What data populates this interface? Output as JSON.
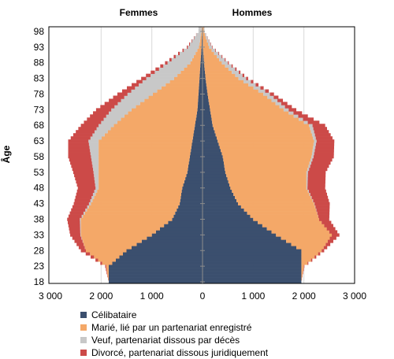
{
  "chart_data": {
    "type": "bar",
    "orientation": "horizontal",
    "stacked": true,
    "title_left": "Femmes",
    "title_right": "Hommes",
    "ylabel": "Âge",
    "age_range": [
      18,
      99
    ],
    "y_tick_labels": [
      "18",
      "23",
      "28",
      "33",
      "38",
      "43",
      "48",
      "53",
      "58",
      "63",
      "68",
      "73",
      "78",
      "83",
      "88",
      "93",
      "98"
    ],
    "x_tick_labels": [
      "3 000",
      "2 000",
      "1 000",
      "0",
      "1 000",
      "2 000",
      "3 000"
    ],
    "xlim": [
      -3000,
      3000
    ],
    "grid_x": [
      -2000,
      -1000,
      1000,
      2000
    ],
    "legend_position": "bottom",
    "colors": {
      "celibataire": "#3b4f6e",
      "marie": "#f4a868",
      "veuf": "#c8c8c8",
      "divorce": "#cc4a48"
    },
    "legend": [
      "Célibataire",
      "Marié, lié par un partenariat enregistré",
      "Veuf, partenariat dissous par décès",
      "Divorcé, partenariat dissous juridiquement"
    ],
    "femmes": {
      "celibataire": [
        {
          "age": 18,
          "value": 1850
        },
        {
          "age": 23,
          "value": 1850
        },
        {
          "age": 28,
          "value": 1500
        },
        {
          "age": 33,
          "value": 1000
        },
        {
          "age": 38,
          "value": 600
        },
        {
          "age": 43,
          "value": 450
        },
        {
          "age": 48,
          "value": 400
        },
        {
          "age": 53,
          "value": 300
        },
        {
          "age": 58,
          "value": 250
        },
        {
          "age": 63,
          "value": 200
        },
        {
          "age": 68,
          "value": 150
        },
        {
          "age": 73,
          "value": 100
        },
        {
          "age": 78,
          "value": 80
        },
        {
          "age": 83,
          "value": 60
        },
        {
          "age": 88,
          "value": 40
        },
        {
          "age": 93,
          "value": 20
        },
        {
          "age": 98,
          "value": 10
        }
      ],
      "marie": [
        {
          "age": 18,
          "value": 0
        },
        {
          "age": 23,
          "value": 50
        },
        {
          "age": 28,
          "value": 800
        },
        {
          "age": 33,
          "value": 1400
        },
        {
          "age": 38,
          "value": 1800
        },
        {
          "age": 43,
          "value": 1750
        },
        {
          "age": 48,
          "value": 1650
        },
        {
          "age": 53,
          "value": 1750
        },
        {
          "age": 58,
          "value": 1800
        },
        {
          "age": 63,
          "value": 1850
        },
        {
          "age": 68,
          "value": 1600
        },
        {
          "age": 73,
          "value": 1300
        },
        {
          "age": 78,
          "value": 900
        },
        {
          "age": 83,
          "value": 500
        },
        {
          "age": 88,
          "value": 200
        },
        {
          "age": 93,
          "value": 50
        },
        {
          "age": 98,
          "value": 10
        }
      ],
      "veuf": [
        {
          "age": 18,
          "value": 0
        },
        {
          "age": 23,
          "value": 0
        },
        {
          "age": 28,
          "value": 0
        },
        {
          "age": 33,
          "value": 10
        },
        {
          "age": 38,
          "value": 20
        },
        {
          "age": 43,
          "value": 40
        },
        {
          "age": 48,
          "value": 60
        },
        {
          "age": 53,
          "value": 100
        },
        {
          "age": 58,
          "value": 150
        },
        {
          "age": 63,
          "value": 200
        },
        {
          "age": 68,
          "value": 300
        },
        {
          "age": 73,
          "value": 400
        },
        {
          "age": 78,
          "value": 500
        },
        {
          "age": 83,
          "value": 550
        },
        {
          "age": 88,
          "value": 450
        },
        {
          "age": 93,
          "value": 220
        },
        {
          "age": 98,
          "value": 60
        }
      ],
      "divorce": [
        {
          "age": 18,
          "value": 0
        },
        {
          "age": 23,
          "value": 20
        },
        {
          "age": 28,
          "value": 100
        },
        {
          "age": 33,
          "value": 200
        },
        {
          "age": 38,
          "value": 250
        },
        {
          "age": 43,
          "value": 300
        },
        {
          "age": 48,
          "value": 350
        },
        {
          "age": 53,
          "value": 400
        },
        {
          "age": 58,
          "value": 450
        },
        {
          "age": 63,
          "value": 400
        },
        {
          "age": 68,
          "value": 350
        },
        {
          "age": 73,
          "value": 300
        },
        {
          "age": 78,
          "value": 200
        },
        {
          "age": 83,
          "value": 100
        },
        {
          "age": 88,
          "value": 50
        },
        {
          "age": 93,
          "value": 20
        },
        {
          "age": 98,
          "value": 0
        }
      ]
    },
    "hommes": {
      "celibataire": [
        {
          "age": 18,
          "value": 1950
        },
        {
          "age": 23,
          "value": 1950
        },
        {
          "age": 28,
          "value": 1950
        },
        {
          "age": 33,
          "value": 1450
        },
        {
          "age": 38,
          "value": 1000
        },
        {
          "age": 43,
          "value": 700
        },
        {
          "age": 48,
          "value": 550
        },
        {
          "age": 53,
          "value": 450
        },
        {
          "age": 58,
          "value": 400
        },
        {
          "age": 63,
          "value": 300
        },
        {
          "age": 68,
          "value": 200
        },
        {
          "age": 73,
          "value": 150
        },
        {
          "age": 78,
          "value": 100
        },
        {
          "age": 83,
          "value": 60
        },
        {
          "age": 88,
          "value": 30
        },
        {
          "age": 93,
          "value": 10
        },
        {
          "age": 98,
          "value": 5
        }
      ],
      "marie": [
        {
          "age": 18,
          "value": 0
        },
        {
          "age": 23,
          "value": 50
        },
        {
          "age": 28,
          "value": 400
        },
        {
          "age": 33,
          "value": 1100
        },
        {
          "age": 38,
          "value": 1300
        },
        {
          "age": 43,
          "value": 1500
        },
        {
          "age": 48,
          "value": 1500
        },
        {
          "age": 53,
          "value": 1600
        },
        {
          "age": 58,
          "value": 1750
        },
        {
          "age": 63,
          "value": 1900
        },
        {
          "age": 68,
          "value": 1900
        },
        {
          "age": 73,
          "value": 1450
        },
        {
          "age": 78,
          "value": 1100
        },
        {
          "age": 83,
          "value": 650
        },
        {
          "age": 88,
          "value": 350
        },
        {
          "age": 93,
          "value": 120
        },
        {
          "age": 98,
          "value": 20
        }
      ],
      "veuf": [
        {
          "age": 18,
          "value": 0
        },
        {
          "age": 23,
          "value": 0
        },
        {
          "age": 28,
          "value": 0
        },
        {
          "age": 33,
          "value": 0
        },
        {
          "age": 38,
          "value": 0
        },
        {
          "age": 43,
          "value": 10
        },
        {
          "age": 48,
          "value": 20
        },
        {
          "age": 53,
          "value": 30
        },
        {
          "age": 58,
          "value": 40
        },
        {
          "age": 63,
          "value": 50
        },
        {
          "age": 68,
          "value": 70
        },
        {
          "age": 73,
          "value": 100
        },
        {
          "age": 78,
          "value": 130
        },
        {
          "age": 83,
          "value": 150
        },
        {
          "age": 88,
          "value": 120
        },
        {
          "age": 93,
          "value": 60
        },
        {
          "age": 98,
          "value": 15
        }
      ],
      "divorce": [
        {
          "age": 18,
          "value": 0
        },
        {
          "age": 23,
          "value": 10
        },
        {
          "age": 28,
          "value": 50
        },
        {
          "age": 33,
          "value": 150
        },
        {
          "age": 38,
          "value": 200
        },
        {
          "age": 43,
          "value": 300
        },
        {
          "age": 48,
          "value": 350
        },
        {
          "age": 53,
          "value": 350
        },
        {
          "age": 58,
          "value": 400
        },
        {
          "age": 63,
          "value": 350
        },
        {
          "age": 68,
          "value": 250
        },
        {
          "age": 73,
          "value": 150
        },
        {
          "age": 78,
          "value": 80
        },
        {
          "age": 83,
          "value": 40
        },
        {
          "age": 88,
          "value": 20
        },
        {
          "age": 93,
          "value": 10
        },
        {
          "age": 98,
          "value": 0
        }
      ]
    }
  }
}
